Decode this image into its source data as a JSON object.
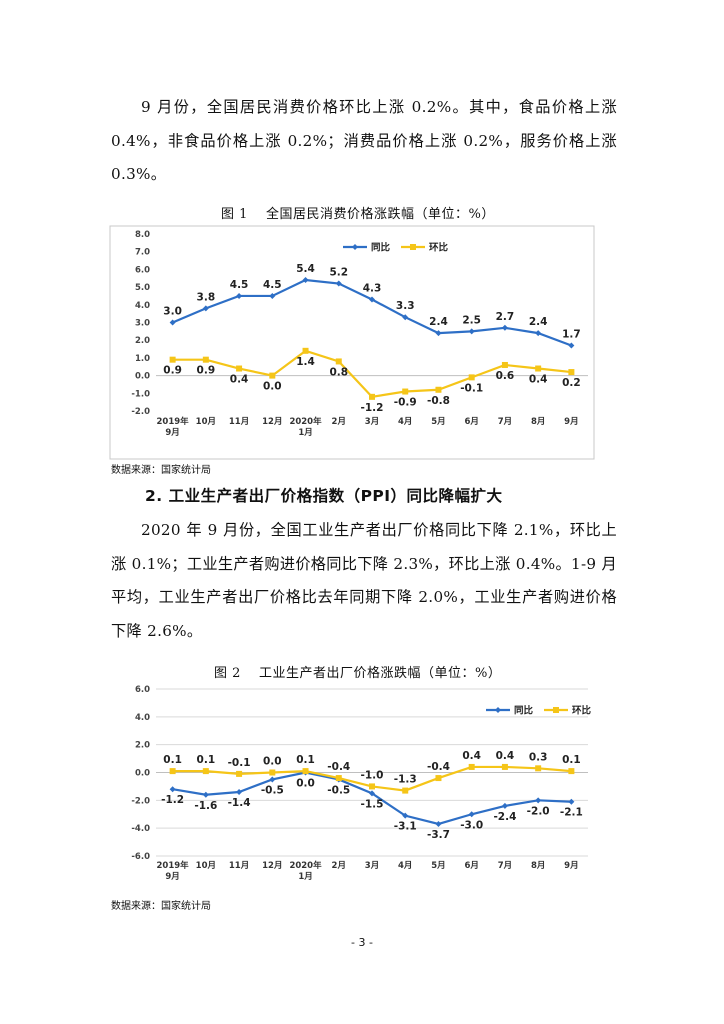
{
  "paragraph1": "9 月份，全国居民消费价格环比上涨 0.2%。其中，食品价格上涨 0.4%，非食品价格上涨 0.2%；消费品价格上涨 0.2%，服务价格上涨 0.3%。",
  "figure1": {
    "title": "图 1　 全国居民消费价格涨跌幅（单位：%）",
    "source": "数据来源：国家统计局"
  },
  "heading2": "2. 工业生产者出厂价格指数（PPI）同比降幅扩大",
  "paragraph2": "2020 年 9 月份，全国工业生产者出厂价格同比下降 2.1%，环比上涨 0.1%；工业生产者购进价格同比下降 2.3%，环比上涨 0.4%。1-9 月平均，工业生产者出厂价格比去年同期下降 2.0%，工业生产者购进价格下降 2.6%。",
  "figure2": {
    "title": "图 2　 工业生产者出厂价格涨跌幅（单位：%）",
    "source": "数据来源：国家统计局"
  },
  "page_number": "- 3 -",
  "colors": {
    "yoy": "#2e6fc6",
    "mom": "#f5c518",
    "grid": "#d9d9d9"
  },
  "chart_data": [
    {
      "type": "line",
      "title": "全国居民消费价格涨跌幅（单位：%）",
      "categories": [
        "2019年\n9月",
        "10月",
        "11月",
        "12月",
        "2020年\n1月",
        "2月",
        "3月",
        "4月",
        "5月",
        "6月",
        "7月",
        "8月",
        "9月"
      ],
      "ylim": [
        -2.0,
        8.0
      ],
      "yticks": [
        "8.0",
        "7.0",
        "6.0",
        "5.0",
        "4.0",
        "3.0",
        "2.0",
        "1.0",
        "0.0",
        "-1.0",
        "-2.0"
      ],
      "ytick_values": [
        8,
        7,
        6,
        5,
        4,
        3,
        2,
        1,
        0,
        -1,
        -2
      ],
      "legend": "top-center",
      "series": [
        {
          "name": "同比",
          "values": [
            3.0,
            3.8,
            4.5,
            4.5,
            5.4,
            5.2,
            4.3,
            3.3,
            2.4,
            2.5,
            2.7,
            2.4,
            1.7
          ],
          "labels": [
            "3.0",
            "3.8",
            "4.5",
            "4.5",
            "5.4",
            "5.2",
            "4.3",
            "3.3",
            "2.4",
            "2.5",
            "2.7",
            "2.4",
            "1.7"
          ]
        },
        {
          "name": "环比",
          "values": [
            0.9,
            0.9,
            0.4,
            0.0,
            1.4,
            0.8,
            -1.2,
            -0.9,
            -0.8,
            -0.1,
            0.6,
            0.4,
            0.2
          ],
          "labels": [
            "0.9",
            "0.9",
            "0.4",
            "0.0",
            "1.4",
            "0.8",
            "-1.2",
            "-0.9",
            "-0.8",
            "-0.1",
            "0.6",
            "0.4",
            "0.2"
          ]
        }
      ]
    },
    {
      "type": "line",
      "title": "工业生产者出厂价格涨跌幅（单位：%）",
      "categories": [
        "2019年\n9月",
        "10月",
        "11月",
        "12月",
        "2020年\n1月",
        "2月",
        "3月",
        "4月",
        "5月",
        "6月",
        "7月",
        "8月",
        "9月"
      ],
      "ylim": [
        -6.0,
        6.0
      ],
      "yticks": [
        "6.0",
        "4.0",
        "2.0",
        "0.0",
        "-2.0",
        "-4.0",
        "-6.0"
      ],
      "ytick_values": [
        6,
        4,
        2,
        0,
        -2,
        -4,
        -6
      ],
      "legend": "top-right",
      "series": [
        {
          "name": "同比",
          "values": [
            -1.2,
            -1.6,
            -1.4,
            -0.5,
            0.0,
            -0.5,
            -1.5,
            -3.1,
            -3.7,
            -3.0,
            -2.4,
            -2.0,
            -2.1
          ],
          "labels": [
            "-1.2",
            "-1.6",
            "-1.4",
            "-0.5",
            "0.0",
            "-0.5",
            "-1.5",
            "-3.1",
            "-3.7",
            "-3.0",
            "-2.4",
            "-2.0",
            "-2.1"
          ]
        },
        {
          "name": "环比",
          "values": [
            0.1,
            0.1,
            -0.1,
            0.0,
            0.1,
            -0.4,
            -1.0,
            -1.3,
            -0.4,
            0.4,
            0.4,
            0.3,
            0.1
          ],
          "labels": [
            "0.1",
            "0.1",
            "-0.1",
            "0.0",
            "0.1",
            "-0.4",
            "-1.0",
            "-1.3",
            "-0.4",
            "0.4",
            "0.4",
            "0.3",
            "0.1"
          ]
        }
      ]
    }
  ]
}
